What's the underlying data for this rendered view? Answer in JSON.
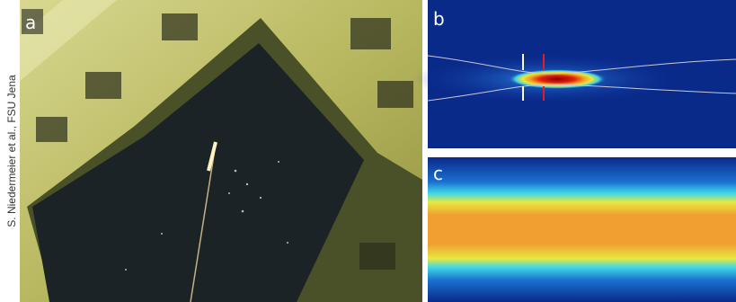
{
  "credit": "S. Niedermeier et al., FSU Jena",
  "panels": [
    {
      "label": "a"
    },
    {
      "label": "b"
    },
    {
      "label": "c"
    }
  ]
}
